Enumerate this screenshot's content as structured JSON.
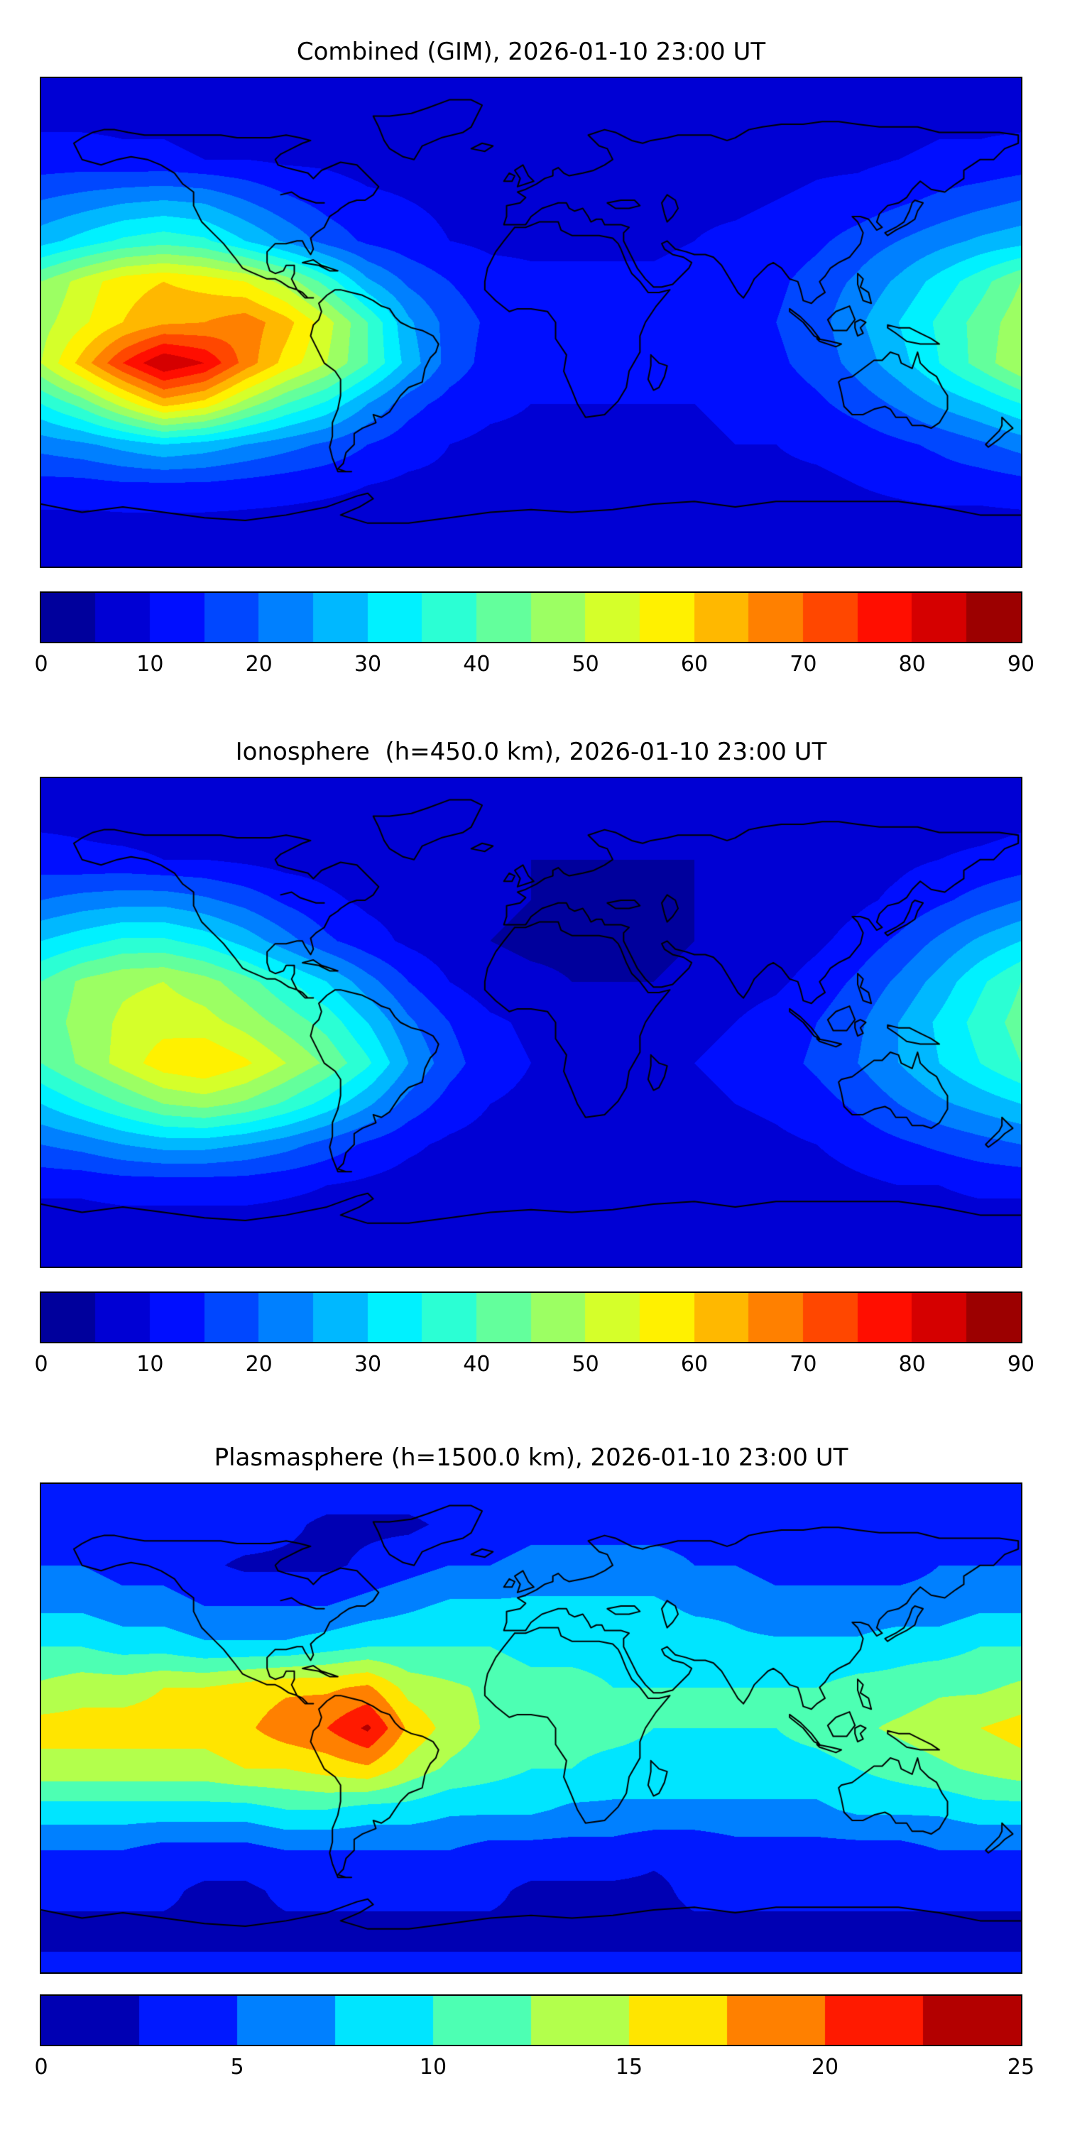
{
  "figure": {
    "background": "#ffffff",
    "text_color": "#000000",
    "coastline_color": "#000000",
    "colormap": "jet"
  },
  "chart_data": [
    {
      "type": "heatmap",
      "title": "Combined (GIM), 2026-01-10 23:00 UT",
      "projection": "equirectangular",
      "lon_range": [
        -180,
        180
      ],
      "lat_range": [
        -90,
        90
      ],
      "levels": {
        "min": 0,
        "max": 90,
        "step": 5
      },
      "colorbar_ticks": [
        0,
        10,
        20,
        30,
        40,
        50,
        60,
        70,
        80,
        90
      ],
      "grid_lons": [
        -180,
        -165,
        -150,
        -135,
        -120,
        -105,
        -90,
        -75,
        -60,
        -45,
        -30,
        -15,
        0,
        15,
        30,
        45,
        60,
        75,
        90,
        105,
        120,
        135,
        150,
        165,
        180
      ],
      "grid_lats": [
        90,
        75,
        60,
        45,
        30,
        15,
        0,
        -15,
        -30,
        -45,
        -60,
        -75,
        -90
      ],
      "values": [
        [
          8,
          8,
          8,
          8,
          8,
          8,
          8,
          8,
          8,
          8,
          8,
          8,
          8,
          8,
          8,
          8,
          8,
          8,
          8,
          8,
          8,
          8,
          8,
          8,
          8
        ],
        [
          9,
          9,
          9,
          9,
          8,
          8,
          8,
          8,
          8,
          8,
          7,
          7,
          7,
          7,
          7,
          7,
          7,
          7,
          8,
          8,
          8,
          8,
          9,
          9,
          9
        ],
        [
          12,
          12,
          11,
          11,
          10,
          10,
          9,
          9,
          8,
          8,
          7,
          7,
          7,
          7,
          7,
          7,
          7,
          8,
          8,
          9,
          9,
          10,
          11,
          11,
          12
        ],
        [
          20,
          22,
          24,
          25,
          24,
          20,
          16,
          13,
          11,
          10,
          9,
          8,
          8,
          8,
          8,
          8,
          9,
          9,
          10,
          11,
          12,
          14,
          16,
          18,
          20
        ],
        [
          28,
          32,
          36,
          38,
          36,
          30,
          24,
          18,
          14,
          12,
          10,
          9,
          9,
          9,
          9,
          9,
          10,
          11,
          12,
          14,
          17,
          20,
          23,
          26,
          28
        ],
        [
          45,
          52,
          58,
          60,
          58,
          55,
          48,
          38,
          26,
          19,
          15,
          12,
          11,
          11,
          11,
          11,
          12,
          13,
          14,
          17,
          21,
          26,
          32,
          38,
          45
        ],
        [
          48,
          54,
          60,
          64,
          65,
          68,
          62,
          52,
          40,
          26,
          18,
          14,
          12,
          11,
          11,
          11,
          12,
          13,
          15,
          18,
          24,
          30,
          36,
          42,
          48
        ],
        [
          50,
          62,
          75,
          85,
          80,
          68,
          58,
          50,
          40,
          28,
          18,
          13,
          11,
          10,
          10,
          10,
          11,
          12,
          14,
          17,
          22,
          28,
          35,
          42,
          50
        ],
        [
          35,
          42,
          52,
          62,
          58,
          48,
          40,
          34,
          25,
          17,
          13,
          11,
          10,
          10,
          10,
          10,
          10,
          11,
          12,
          14,
          17,
          21,
          26,
          30,
          35
        ],
        [
          22,
          24,
          27,
          30,
          28,
          25,
          22,
          19,
          15,
          12,
          10,
          9,
          9,
          9,
          9,
          9,
          9,
          10,
          10,
          11,
          12,
          14,
          16,
          19,
          22
        ],
        [
          13,
          13,
          14,
          14,
          14,
          13,
          12,
          11,
          10,
          9,
          9,
          8,
          8,
          8,
          8,
          8,
          8,
          9,
          9,
          9,
          10,
          11,
          12,
          12,
          13
        ],
        [
          8,
          8,
          8,
          8,
          8,
          8,
          8,
          8,
          8,
          8,
          8,
          8,
          8,
          8,
          8,
          8,
          8,
          8,
          8,
          8,
          8,
          8,
          8,
          8,
          8
        ],
        [
          8,
          8,
          8,
          8,
          8,
          8,
          8,
          8,
          8,
          8,
          8,
          8,
          8,
          8,
          8,
          8,
          8,
          8,
          8,
          8,
          8,
          8,
          8,
          8,
          8
        ]
      ]
    },
    {
      "type": "heatmap",
      "title": "Ionosphere  (h=450.0 km), 2026-01-10 23:00 UT",
      "projection": "equirectangular",
      "lon_range": [
        -180,
        180
      ],
      "lat_range": [
        -90,
        90
      ],
      "levels": {
        "min": 0,
        "max": 90,
        "step": 5
      },
      "colorbar_ticks": [
        0,
        10,
        20,
        30,
        40,
        50,
        60,
        70,
        80,
        90
      ],
      "grid_lons": [
        -180,
        -165,
        -150,
        -135,
        -120,
        -105,
        -90,
        -75,
        -60,
        -45,
        -30,
        -15,
        0,
        15,
        30,
        45,
        60,
        75,
        90,
        105,
        120,
        135,
        150,
        165,
        180
      ],
      "grid_lats": [
        90,
        75,
        60,
        45,
        30,
        15,
        0,
        -15,
        -30,
        -45,
        -60,
        -75,
        -90
      ],
      "values": [
        [
          8,
          8,
          8,
          8,
          8,
          8,
          8,
          8,
          8,
          8,
          8,
          8,
          8,
          8,
          8,
          8,
          8,
          8,
          8,
          8,
          8,
          8,
          8,
          8,
          8
        ],
        [
          9,
          9,
          8,
          8,
          8,
          8,
          7,
          7,
          7,
          7,
          6,
          6,
          6,
          6,
          6,
          6,
          6,
          6,
          7,
          7,
          7,
          8,
          8,
          8,
          9
        ],
        [
          12,
          11,
          11,
          10,
          10,
          9,
          8,
          8,
          7,
          6,
          6,
          5,
          5,
          5,
          5,
          5,
          5,
          6,
          6,
          7,
          8,
          9,
          10,
          11,
          12
        ],
        [
          20,
          22,
          23,
          23,
          21,
          18,
          14,
          11,
          9,
          8,
          7,
          6,
          5,
          4,
          4,
          4,
          5,
          5,
          6,
          7,
          9,
          11,
          14,
          17,
          20
        ],
        [
          30,
          33,
          36,
          36,
          33,
          28,
          22,
          16,
          12,
          9,
          7,
          5,
          4,
          4,
          4,
          4,
          5,
          6,
          7,
          9,
          12,
          16,
          21,
          26,
          30
        ],
        [
          40,
          46,
          49,
          50,
          47,
          42,
          36,
          30,
          22,
          15,
          10,
          7,
          6,
          5,
          5,
          5,
          6,
          8,
          9,
          12,
          16,
          21,
          27,
          34,
          40
        ],
        [
          42,
          47,
          51,
          53,
          52,
          48,
          43,
          38,
          30,
          21,
          15,
          11,
          9,
          8,
          8,
          8,
          9,
          10,
          12,
          15,
          19,
          25,
          31,
          37,
          42
        ],
        [
          40,
          46,
          52,
          58,
          60,
          56,
          50,
          44,
          36,
          25,
          17,
          12,
          10,
          9,
          9,
          9,
          10,
          11,
          13,
          16,
          20,
          25,
          30,
          35,
          40
        ],
        [
          30,
          35,
          40,
          45,
          47,
          44,
          39,
          33,
          26,
          18,
          13,
          10,
          9,
          8,
          8,
          8,
          9,
          10,
          11,
          13,
          16,
          20,
          24,
          27,
          30
        ],
        [
          20,
          22,
          25,
          27,
          27,
          25,
          22,
          18,
          14,
          11,
          9,
          8,
          7,
          7,
          7,
          7,
          8,
          8,
          9,
          10,
          12,
          14,
          16,
          18,
          20
        ],
        [
          11,
          11,
          12,
          12,
          12,
          12,
          11,
          10,
          9,
          8,
          8,
          7,
          7,
          7,
          7,
          7,
          7,
          8,
          8,
          8,
          9,
          10,
          10,
          11,
          11
        ],
        [
          8,
          8,
          8,
          8,
          8,
          8,
          8,
          8,
          8,
          8,
          8,
          8,
          8,
          8,
          8,
          8,
          8,
          8,
          8,
          8,
          8,
          8,
          8,
          8,
          8
        ],
        [
          8,
          8,
          8,
          8,
          8,
          8,
          8,
          8,
          8,
          8,
          8,
          8,
          8,
          8,
          8,
          8,
          8,
          8,
          8,
          8,
          8,
          8,
          8,
          8,
          8
        ]
      ]
    },
    {
      "type": "heatmap",
      "title": "Plasmasphere (h=1500.0 km), 2026-01-10 23:00 UT",
      "projection": "equirectangular",
      "lon_range": [
        -180,
        180
      ],
      "lat_range": [
        -90,
        90
      ],
      "levels": {
        "min": 0,
        "max": 25,
        "step": 2.5
      },
      "colorbar_ticks": [
        0,
        5,
        10,
        15,
        20,
        25
      ],
      "grid_lons": [
        -180,
        -165,
        -150,
        -135,
        -120,
        -105,
        -90,
        -75,
        -60,
        -45,
        -30,
        -15,
        0,
        15,
        30,
        45,
        60,
        75,
        90,
        105,
        120,
        135,
        150,
        165,
        180
      ],
      "grid_lats": [
        90,
        75,
        60,
        45,
        30,
        15,
        0,
        -15,
        -30,
        -45,
        -60,
        -75,
        -90
      ],
      "values": [
        [
          4,
          4,
          4,
          4,
          4,
          4,
          4,
          4,
          4,
          4,
          4,
          4,
          4,
          4,
          4,
          4,
          4,
          4,
          4,
          4,
          4,
          4,
          4,
          4,
          4
        ],
        [
          3,
          3,
          3,
          4,
          4,
          4,
          3,
          2,
          2,
          2,
          3,
          3,
          4,
          4,
          4,
          4,
          4,
          3,
          3,
          3,
          3,
          3,
          3,
          3,
          3
        ],
        [
          5,
          5,
          4,
          4,
          3,
          2,
          2,
          2,
          3,
          4,
          5,
          5,
          6,
          6,
          6,
          6,
          5,
          5,
          4,
          4,
          4,
          4,
          5,
          5,
          5
        ],
        [
          7,
          7,
          6,
          6,
          5,
          5,
          5,
          5,
          6,
          7,
          8,
          8,
          8,
          8,
          8,
          8,
          7,
          7,
          6,
          6,
          6,
          6,
          6,
          7,
          7
        ],
        [
          10,
          10,
          9,
          9,
          8,
          8,
          8,
          9,
          10,
          10,
          10,
          10,
          9,
          9,
          9,
          9,
          9,
          8,
          8,
          8,
          8,
          9,
          9,
          10,
          10
        ],
        [
          13,
          14,
          14,
          15,
          15,
          16,
          17,
          17,
          18,
          14,
          13,
          12,
          11,
          11,
          10,
          10,
          10,
          10,
          10,
          10,
          11,
          11,
          12,
          12,
          13
        ],
        [
          16,
          16,
          16,
          16,
          16,
          17,
          19,
          20,
          23,
          17,
          14,
          12,
          12,
          11,
          11,
          10,
          10,
          10,
          10,
          11,
          12,
          13,
          14,
          15,
          16
        ],
        [
          14,
          14,
          14,
          14,
          14,
          15,
          15,
          16,
          17,
          14,
          12,
          11,
          10,
          10,
          9,
          9,
          9,
          9,
          9,
          9,
          10,
          11,
          12,
          13,
          14
        ],
        [
          9,
          9,
          9,
          9,
          9,
          9,
          10,
          10,
          9,
          9,
          8,
          8,
          8,
          7,
          7,
          7,
          7,
          7,
          7,
          7,
          8,
          8,
          8,
          9,
          9
        ],
        [
          5,
          5,
          5,
          4,
          4,
          4,
          5,
          5,
          5,
          5,
          5,
          4,
          4,
          4,
          4,
          3,
          3,
          4,
          4,
          4,
          4,
          4,
          5,
          5,
          5
        ],
        [
          3,
          3,
          3,
          3,
          2,
          2,
          3,
          3,
          3,
          3,
          3,
          3,
          2,
          2,
          2,
          2,
          3,
          3,
          3,
          3,
          3,
          3,
          3,
          3,
          3
        ],
        [
          2,
          2,
          2,
          2,
          2,
          2,
          2,
          2,
          2,
          2,
          2,
          2,
          2,
          2,
          2,
          2,
          2,
          2,
          2,
          2,
          2,
          2,
          2,
          2,
          2
        ],
        [
          3,
          3,
          3,
          3,
          3,
          3,
          3,
          3,
          3,
          3,
          3,
          3,
          3,
          3,
          3,
          3,
          3,
          3,
          3,
          3,
          3,
          3,
          3,
          3,
          3
        ]
      ]
    }
  ]
}
